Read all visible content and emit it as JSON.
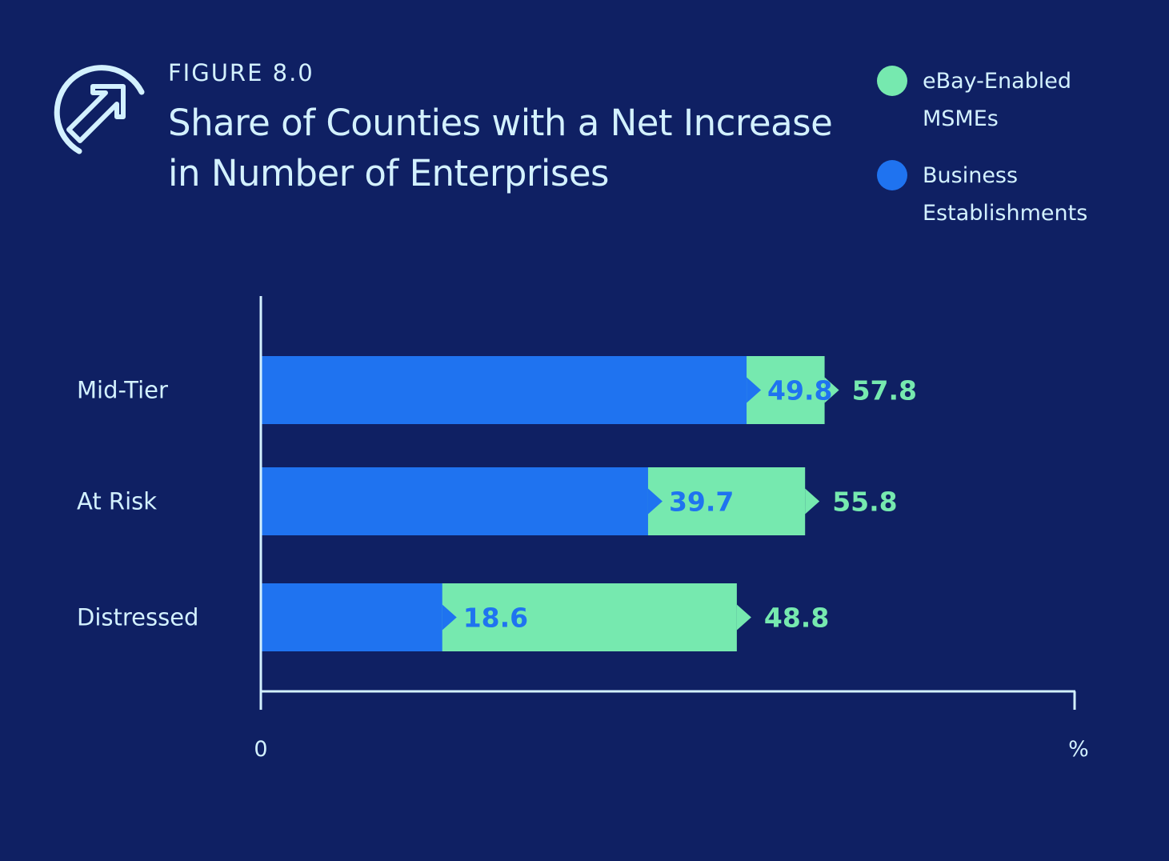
{
  "header": {
    "figure_label": "FIGURE 8.0",
    "title_line1": "Share of Counties with a Net Increase",
    "title_line2": "in Number of Enterprises"
  },
  "legend": {
    "items": [
      {
        "line1": "eBay-Enabled",
        "line2": "MSMEs",
        "color": "#76e9af"
      },
      {
        "line1": "Business",
        "line2": "Establishments",
        "color": "#1f73f0"
      }
    ]
  },
  "colors": {
    "background": "#0f2063",
    "text": "#d3f1ff",
    "ebay": "#76e9af",
    "business": "#1f73f0",
    "axis": "#d3f1ff"
  },
  "chart_data": {
    "type": "bar",
    "orientation": "horizontal",
    "categories": [
      "Mid-Tier",
      "At Risk",
      "Distressed"
    ],
    "series": [
      {
        "name": "eBay-Enabled MSMEs",
        "values": [
          57.8,
          55.8,
          48.8
        ]
      },
      {
        "name": "Business Establishments",
        "values": [
          49.8,
          39.7,
          18.6
        ]
      }
    ],
    "xtick_labels": [
      "0",
      "%"
    ],
    "xlim": [
      0,
      100
    ],
    "grid": false,
    "legend_position": "top-right"
  }
}
